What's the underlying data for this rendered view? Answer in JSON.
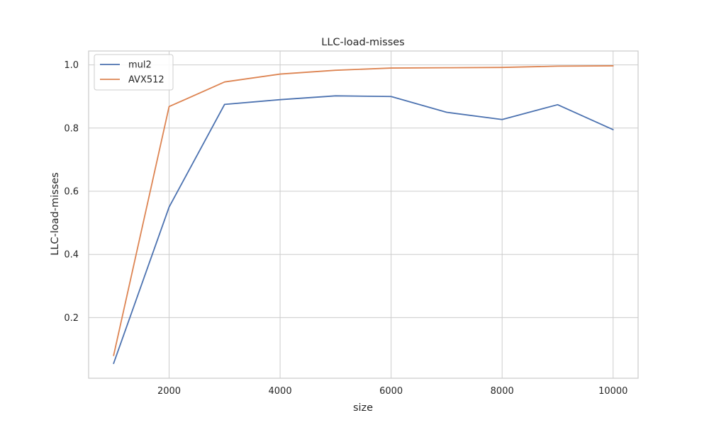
{
  "chart_data": {
    "type": "line",
    "title": "LLC-load-misses",
    "xlabel": "size",
    "ylabel": "LLC-load-misses",
    "x": [
      1000,
      2000,
      3000,
      4000,
      5000,
      6000,
      7000,
      8000,
      9000,
      10000
    ],
    "series": [
      {
        "name": "mul2",
        "color": "#4c72b0",
        "values": [
          0.055,
          0.55,
          0.875,
          0.89,
          0.902,
          0.9,
          0.85,
          0.827,
          0.874,
          0.795
        ]
      },
      {
        "name": "AVX512",
        "color": "#dd8452",
        "values": [
          0.08,
          0.868,
          0.946,
          0.971,
          0.983,
          0.99,
          0.991,
          0.992,
          0.996,
          0.997
        ]
      }
    ],
    "xticks": [
      2000,
      4000,
      6000,
      8000,
      10000
    ],
    "yticks": [
      0.2,
      0.4,
      0.6,
      0.8,
      1.0
    ],
    "xtick_labels": [
      "2000",
      "4000",
      "6000",
      "8000",
      "10000"
    ],
    "ytick_labels": [
      "0.2",
      "0.4",
      "0.6",
      "0.8",
      "1.0"
    ],
    "xlim": [
      550,
      10450
    ],
    "ylim": [
      0.008,
      1.044
    ],
    "grid": true,
    "legend": "top-left"
  }
}
